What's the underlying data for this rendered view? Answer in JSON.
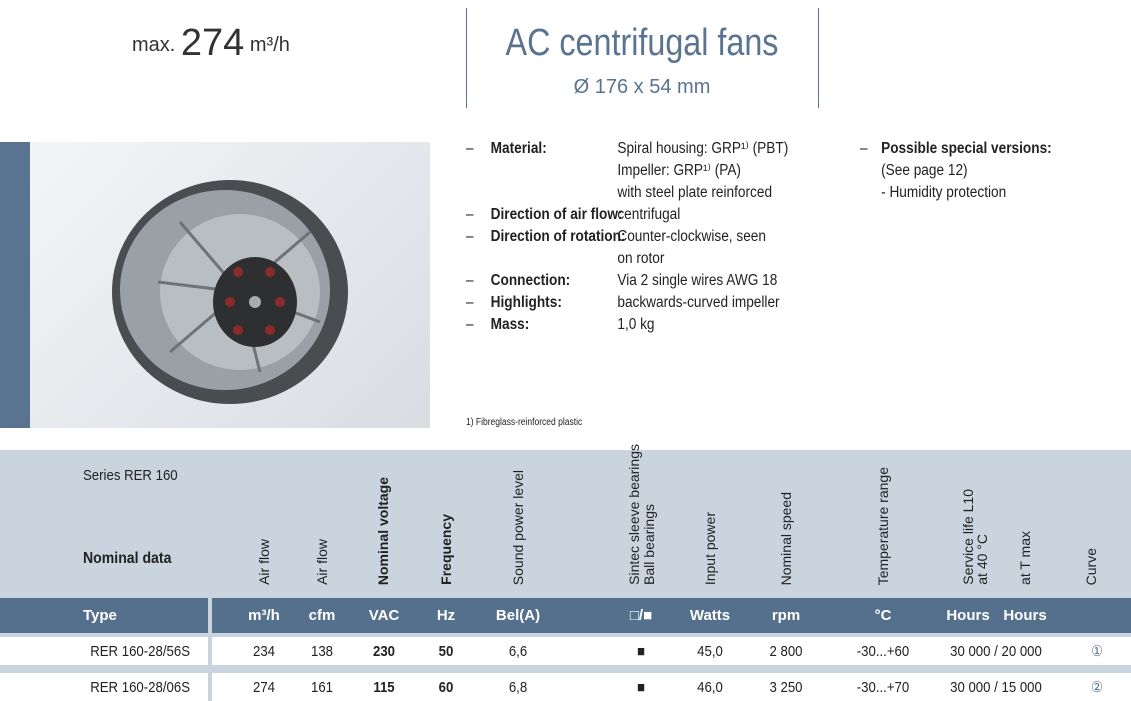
{
  "header": {
    "max_prefix": "max.",
    "max_value": "274",
    "max_unit": "m³/h",
    "title": "AC centrifugal fans",
    "subtitle": "Ø 176 x 54 mm"
  },
  "specs": [
    {
      "label": "Material:",
      "lines": [
        "Spiral housing: GRP¹⁾ (PBT)",
        "Impeller: GRP¹⁾ (PA)",
        "with steel plate reinforced"
      ]
    },
    {
      "label": "Direction of air flow:",
      "lines": [
        "centrifugal"
      ]
    },
    {
      "label": "Direction of rotation:",
      "lines": [
        "Counter-clockwise, seen",
        "on rotor"
      ]
    },
    {
      "label": "Connection:",
      "lines": [
        "Via 2 single wires AWG 18"
      ]
    },
    {
      "label": "Highlights:",
      "lines": [
        "backwards-curved impeller"
      ]
    },
    {
      "label": "Mass:",
      "lines": [
        "1,0 kg"
      ]
    }
  ],
  "special": {
    "label": "Possible special versions:",
    "lines": [
      "(See page 12)",
      "- Humidity protection"
    ]
  },
  "dash": "–",
  "footnote": "1) Fibreglass-reinforced plastic",
  "table": {
    "series": "Series RER 160",
    "nominal": "Nominal data",
    "col_headers": [
      "Air flow",
      "Air flow",
      "Nominal voltage",
      "Frequency",
      "Sound power level",
      "Sintec sleeve bearings",
      "Ball bearings",
      "Input power",
      "Nominal speed",
      "Temperature range",
      "Service life L10",
      "at 40 °C",
      "at T max",
      "Curve"
    ],
    "units": [
      "Type",
      "m³/h",
      "cfm",
      "VAC",
      "Hz",
      "Bel(A)",
      "□/■",
      "Watts",
      "rpm",
      "°C",
      "Hours",
      "Hours"
    ],
    "rows": [
      [
        "RER 160-28/56S",
        "234",
        "138",
        "230",
        "50",
        "6,6",
        "■",
        "45,0",
        "2 800",
        "-30...+60",
        "30 000 / 20 000",
        "①"
      ],
      [
        "RER 160-28/06S",
        "274",
        "161",
        "115",
        "60",
        "6,8",
        "■",
        "46,0",
        "3 250",
        "-30...+70",
        "30 000 / 15 000",
        "②"
      ]
    ]
  },
  "colors": {
    "accent": "#5a7390",
    "type_row": "#54708c",
    "table_bg": "#cad4df"
  }
}
